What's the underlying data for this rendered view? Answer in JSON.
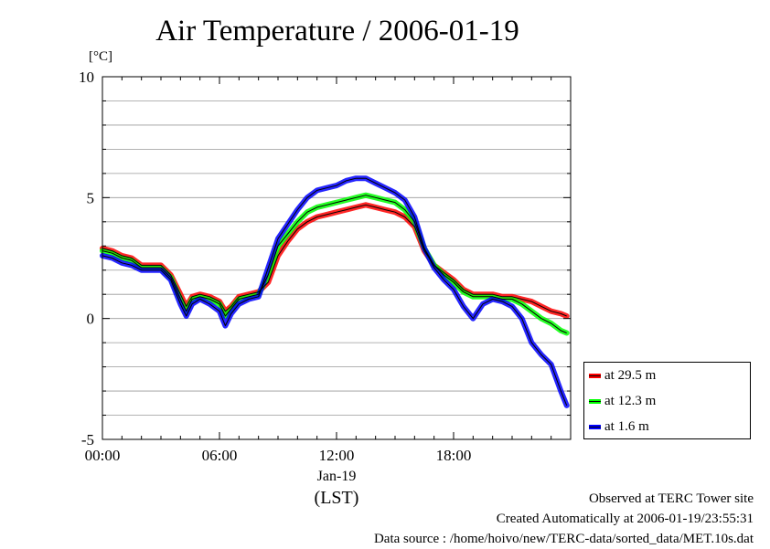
{
  "chart_data": {
    "type": "line",
    "title": "Air Temperature / 2006-01-19",
    "y_unit": "[°C]",
    "ylim": [
      -5,
      10
    ],
    "y_ticks": [
      "10",
      "5",
      "0",
      "-5"
    ],
    "x_ticks": [
      "00:00",
      "06:00",
      "12:00",
      "18:00"
    ],
    "x_date_label": "Jan-19",
    "x_axis_label": "(LST)",
    "grid": true,
    "legend_position": "bottom-right, outside plot",
    "x_hours": [
      0,
      0.5,
      1,
      1.5,
      2,
      2.5,
      3,
      3.5,
      4,
      4.3,
      4.6,
      5,
      5.5,
      6,
      6.3,
      6.6,
      7,
      7.5,
      8,
      8.5,
      9,
      9.5,
      10,
      10.5,
      11,
      11.5,
      12,
      12.5,
      13,
      13.5,
      14,
      14.5,
      15,
      15.5,
      16,
      16.5,
      17,
      17.5,
      18,
      18.5,
      19,
      19.5,
      20,
      20.5,
      21,
      21.5,
      22,
      22.5,
      23,
      23.5,
      23.8
    ],
    "series": [
      {
        "name": "at 29.5 m",
        "color": "#ff0000",
        "values": [
          2.9,
          2.8,
          2.6,
          2.5,
          2.2,
          2.2,
          2.2,
          1.8,
          1.0,
          0.5,
          0.9,
          1.0,
          0.9,
          0.7,
          0.3,
          0.5,
          0.9,
          1.0,
          1.1,
          1.5,
          2.6,
          3.2,
          3.7,
          4.0,
          4.2,
          4.3,
          4.4,
          4.5,
          4.6,
          4.7,
          4.6,
          4.5,
          4.4,
          4.2,
          3.8,
          2.8,
          2.2,
          1.9,
          1.6,
          1.2,
          1.0,
          1.0,
          1.0,
          0.9,
          0.9,
          0.8,
          0.7,
          0.5,
          0.3,
          0.2,
          0.1
        ]
      },
      {
        "name": "at 12.3 m",
        "color": "#00ff00",
        "values": [
          2.8,
          2.7,
          2.5,
          2.4,
          2.1,
          2.1,
          2.1,
          1.7,
          0.8,
          0.3,
          0.8,
          0.9,
          0.8,
          0.6,
          0.1,
          0.4,
          0.8,
          0.9,
          1.0,
          1.8,
          3.0,
          3.5,
          4.0,
          4.4,
          4.6,
          4.7,
          4.8,
          4.9,
          5.0,
          5.1,
          5.0,
          4.9,
          4.8,
          4.5,
          4.0,
          2.9,
          2.2,
          1.8,
          1.5,
          1.1,
          0.9,
          0.9,
          0.9,
          0.8,
          0.8,
          0.6,
          0.3,
          0.0,
          -0.2,
          -0.5,
          -0.6
        ]
      },
      {
        "name": "at 1.6 m",
        "color": "#0000ff",
        "values": [
          2.6,
          2.5,
          2.3,
          2.2,
          2.0,
          2.0,
          2.0,
          1.6,
          0.6,
          0.1,
          0.6,
          0.8,
          0.6,
          0.3,
          -0.3,
          0.2,
          0.6,
          0.8,
          0.9,
          2.1,
          3.3,
          3.9,
          4.5,
          5.0,
          5.3,
          5.4,
          5.5,
          5.7,
          5.8,
          5.8,
          5.6,
          5.4,
          5.2,
          4.9,
          4.2,
          2.9,
          2.1,
          1.6,
          1.2,
          0.5,
          0.0,
          0.6,
          0.8,
          0.7,
          0.5,
          0.0,
          -1.0,
          -1.5,
          -1.9,
          -3.0,
          -3.6
        ]
      }
    ]
  },
  "footer": {
    "observed": "Observed at TERC Tower site",
    "created": "Created Automatically at 2006-01-19/23:55:31",
    "source": "Data source : /home/hoivo/new/TERC-data/sorted_data/MET.10s.dat"
  }
}
